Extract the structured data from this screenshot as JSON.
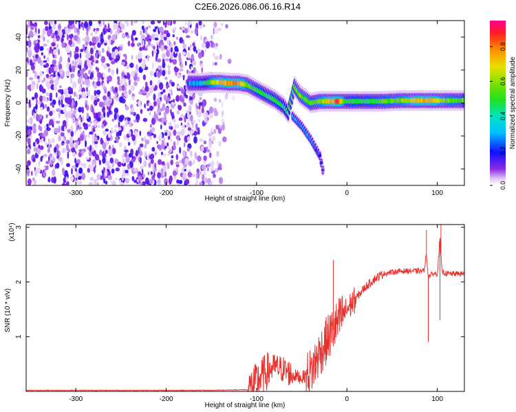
{
  "title": "C2E6.2026.086.06.16.R14",
  "chart_data": [
    {
      "type": "heatmap",
      "xlabel": "Height of straight line (km)",
      "ylabel": "Frequency (Hz)",
      "xlim": [
        -355,
        130
      ],
      "ylim": [
        -50,
        50
      ],
      "x_ticks": [
        -300,
        -200,
        -100,
        0,
        100
      ],
      "y_ticks": [
        -40,
        -20,
        0,
        20,
        40
      ],
      "colorbar": {
        "label": "Normalized spectral amplitude",
        "range": [
          0,
          0.95
        ],
        "ticks": [
          0.0,
          0.2,
          0.4,
          0.6,
          0.8
        ]
      },
      "noise_region_x": [
        -355,
        -160
      ],
      "ridge": [
        {
          "x": -175,
          "y": 12,
          "a": 0.28
        },
        {
          "x": -160,
          "y": 12,
          "a": 0.35
        },
        {
          "x": -150,
          "y": 12.5,
          "a": 0.6
        },
        {
          "x": -140,
          "y": 12.5,
          "a": 0.75
        },
        {
          "x": -130,
          "y": 12,
          "a": 0.8
        },
        {
          "x": -120,
          "y": 12,
          "a": 0.85
        },
        {
          "x": -110,
          "y": 11,
          "a": 0.6
        },
        {
          "x": -100,
          "y": 8,
          "a": 0.5
        },
        {
          "x": -90,
          "y": 5,
          "a": 0.5
        },
        {
          "x": -80,
          "y": 2,
          "a": 0.5
        },
        {
          "x": -70,
          "y": -2,
          "a": 0.45
        },
        {
          "x": -65,
          "y": -6,
          "a": 0.45
        },
        {
          "x": -58,
          "y": 10,
          "a": 0.55
        },
        {
          "x": -52,
          "y": 5,
          "a": 0.6
        },
        {
          "x": -45,
          "y": 2,
          "a": 0.6
        },
        {
          "x": -40,
          "y": 0,
          "a": 0.55
        },
        {
          "x": -30,
          "y": 1,
          "a": 0.6
        },
        {
          "x": -20,
          "y": 1,
          "a": 0.75
        },
        {
          "x": -10,
          "y": 1,
          "a": 0.9
        },
        {
          "x": 0,
          "y": 1,
          "a": 0.5
        },
        {
          "x": 20,
          "y": 1,
          "a": 0.5
        },
        {
          "x": 40,
          "y": 1,
          "a": 0.55
        },
        {
          "x": 60,
          "y": 1.5,
          "a": 0.6
        },
        {
          "x": 80,
          "y": 1.5,
          "a": 0.75
        },
        {
          "x": 90,
          "y": 1.5,
          "a": 0.8
        },
        {
          "x": 110,
          "y": 1.5,
          "a": 0.6
        },
        {
          "x": 130,
          "y": 1.5,
          "a": 0.55
        }
      ],
      "branch": [
        {
          "x": -60,
          "y": -8,
          "a": 0.35
        },
        {
          "x": -50,
          "y": -14,
          "a": 0.3
        },
        {
          "x": -40,
          "y": -22,
          "a": 0.3
        },
        {
          "x": -30,
          "y": -32,
          "a": 0.2
        },
        {
          "x": -25,
          "y": -45,
          "a": 0.1
        }
      ]
    },
    {
      "type": "line",
      "xlabel": "Height of straight line (km)",
      "ylabel": "SNR (10 * v/v)",
      "y_multiplier": "(x10⁴)",
      "xlim": [
        -355,
        130
      ],
      "ylim": [
        0,
        3.05
      ],
      "x_ticks": [
        -300,
        -200,
        -100,
        0,
        100
      ],
      "y_ticks": [
        1,
        2,
        3
      ],
      "color": "#e8302c",
      "series": [
        {
          "x": [
            -355,
            -150,
            -110,
            -100,
            -90,
            -80,
            -70,
            -60,
            -50,
            -40,
            -30,
            -20,
            -10,
            0,
            10,
            20,
            30,
            40,
            50,
            60,
            70,
            80,
            85,
            88,
            90,
            95,
            100,
            103,
            105,
            110,
            120,
            130
          ],
          "y": [
            0.02,
            0.02,
            0.03,
            0.18,
            0.35,
            0.45,
            0.4,
            0.3,
            0.25,
            0.35,
            0.7,
            1.0,
            1.25,
            1.5,
            1.7,
            1.9,
            2.05,
            2.15,
            2.18,
            2.2,
            2.2,
            2.2,
            2.2,
            2.5,
            2.1,
            2.15,
            2.15,
            2.8,
            2.2,
            2.15,
            2.15,
            2.15
          ]
        }
      ],
      "spikes": [
        {
          "x": -15,
          "y": 2.4
        },
        {
          "x": 88,
          "y": 2.95
        },
        {
          "x": 90,
          "y": 0.9
        },
        {
          "x": 104,
          "y": 3.05
        },
        {
          "x": 103,
          "y": 1.3
        }
      ]
    }
  ]
}
